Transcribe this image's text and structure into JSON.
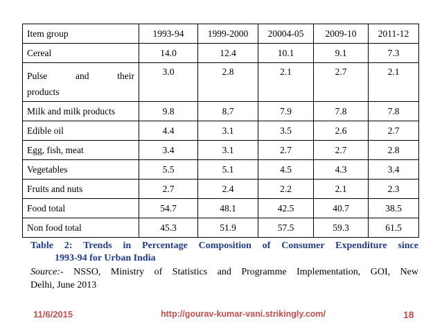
{
  "table": {
    "header": {
      "item_group": "Item group",
      "years": [
        "1993-94",
        "1999-2000",
        "20004-05",
        "2009-10",
        "2011-12"
      ]
    },
    "rows": [
      {
        "label": "Cereal",
        "values": [
          "14.0",
          "12.4",
          "10.1",
          "9.1",
          "7.3"
        ]
      },
      {
        "label_line1": "Pulse and their",
        "label_line2": "products",
        "values": [
          "3.0",
          "2.8",
          "2.1",
          "2.7",
          "2.1"
        ]
      },
      {
        "label": "Milk and milk products",
        "values": [
          "9.8",
          "8.7",
          "7.9",
          "7.8",
          "7.8"
        ]
      },
      {
        "label": "Edible oil",
        "values": [
          "4.4",
          "3.1",
          "3.5",
          "2.6",
          "2.7"
        ]
      },
      {
        "label": "Egg, fish, meat",
        "values": [
          "3.4",
          "3.1",
          "2.7",
          "2.7",
          "2.8"
        ]
      },
      {
        "label": "Vegetables",
        "values": [
          "5.5",
          "5.1",
          "4.5",
          "4.3",
          "3.4"
        ]
      },
      {
        "label": "Fruits and nuts",
        "values": [
          "2.7",
          "2.4",
          "2.2",
          "2.1",
          "2.3"
        ]
      },
      {
        "label": "Food total",
        "values": [
          "54.7",
          "48.1",
          "42.5",
          "40.7",
          "38.5"
        ]
      },
      {
        "label": "Non food total",
        "values": [
          "45.3",
          "51.9",
          "57.5",
          "59.3",
          "61.5"
        ]
      }
    ]
  },
  "caption": {
    "line1": "Table 2: Trends in Percentage Composition of Consumer Expenditure since",
    "line2": "1993-94 for Urban India"
  },
  "source": {
    "label": "Source:-",
    "line1_rest": " NSSO, Ministry of Statistics and Programme Implementation, GOI, New",
    "line2": "Delhi, June 2013"
  },
  "footer": {
    "date": "11/6/2015",
    "url": "http://gourav-kumar-vani.strikingly.com/",
    "page": "18"
  },
  "colors": {
    "caption": "#1f3c88",
    "footer": "#c0504d"
  }
}
